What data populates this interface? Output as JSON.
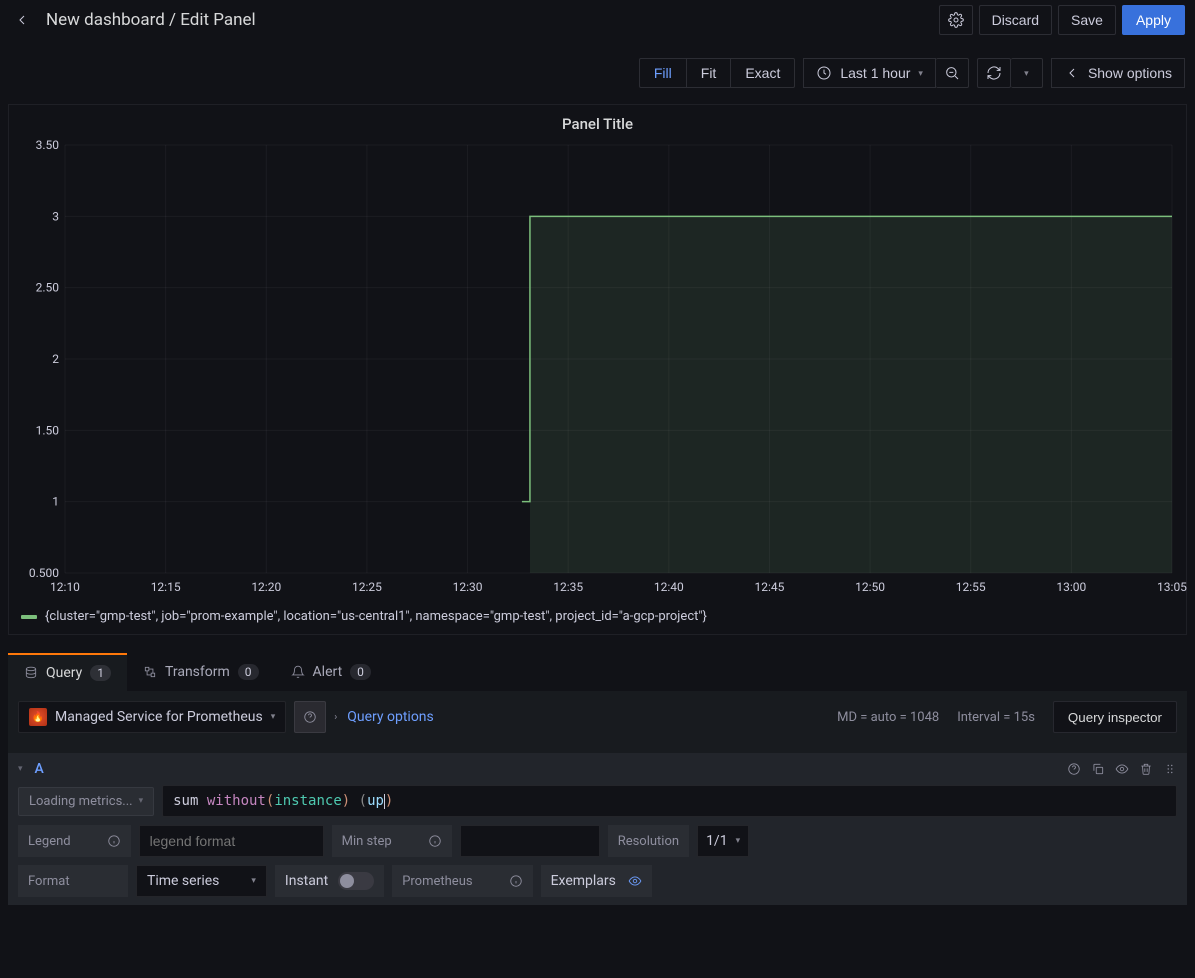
{
  "header": {
    "breadcrumb": "New dashboard / Edit Panel",
    "discard": "Discard",
    "save": "Save",
    "apply": "Apply"
  },
  "toolbar": {
    "fill": "Fill",
    "fit": "Fit",
    "exact": "Exact",
    "time_range": "Last 1 hour",
    "show_options": "Show options"
  },
  "panel": {
    "title": "Panel Title",
    "legend_text": "{cluster=\"gmp-test\", job=\"prom-example\", location=\"us-central1\", namespace=\"gmp-test\", project_id=\"a-gcp-project\"}",
    "series_color": "#7cbf7c",
    "fill_color": "rgba(124,191,124,0.12)",
    "grid_color": "rgba(204,204,220,0.06)",
    "axis_text_color": "#ccccdc",
    "y_ticks": [
      "0.500",
      "1",
      "1.50",
      "2",
      "2.50",
      "3",
      "3.50"
    ],
    "y_values": [
      0.5,
      1,
      1.5,
      2,
      2.5,
      3,
      3.5
    ],
    "x_ticks": [
      "12:10",
      "12:15",
      "12:20",
      "12:25",
      "12:30",
      "12:35",
      "12:40",
      "12:45",
      "12:50",
      "12:55",
      "13:00",
      "13:05"
    ],
    "y_min": 0.5,
    "y_max": 3.5,
    "series": {
      "step_x_frac": 0.42,
      "pre_value": 1,
      "post_value": 3
    }
  },
  "tabs": {
    "query": "Query",
    "query_count": "1",
    "transform": "Transform",
    "transform_count": "0",
    "alert": "Alert",
    "alert_count": "0"
  },
  "datasource": {
    "name": "Managed Service for Prometheus",
    "query_options": "Query options",
    "md": "MD = auto = 1048",
    "interval": "Interval = 15s",
    "inspector": "Query inspector"
  },
  "query": {
    "ref_id": "A",
    "metrics_label": "Loading metrics...",
    "expr": {
      "agg": "sum",
      "mod": "without",
      "label": "instance",
      "metric": "up"
    },
    "legend_label": "Legend",
    "legend_placeholder": "legend format",
    "minstep_label": "Min step",
    "resolution_label": "Resolution",
    "resolution_value": "1/1",
    "format_label": "Format",
    "format_value": "Time series",
    "instant_label": "Instant",
    "prometheus_label": "Prometheus",
    "exemplars_label": "Exemplars"
  }
}
